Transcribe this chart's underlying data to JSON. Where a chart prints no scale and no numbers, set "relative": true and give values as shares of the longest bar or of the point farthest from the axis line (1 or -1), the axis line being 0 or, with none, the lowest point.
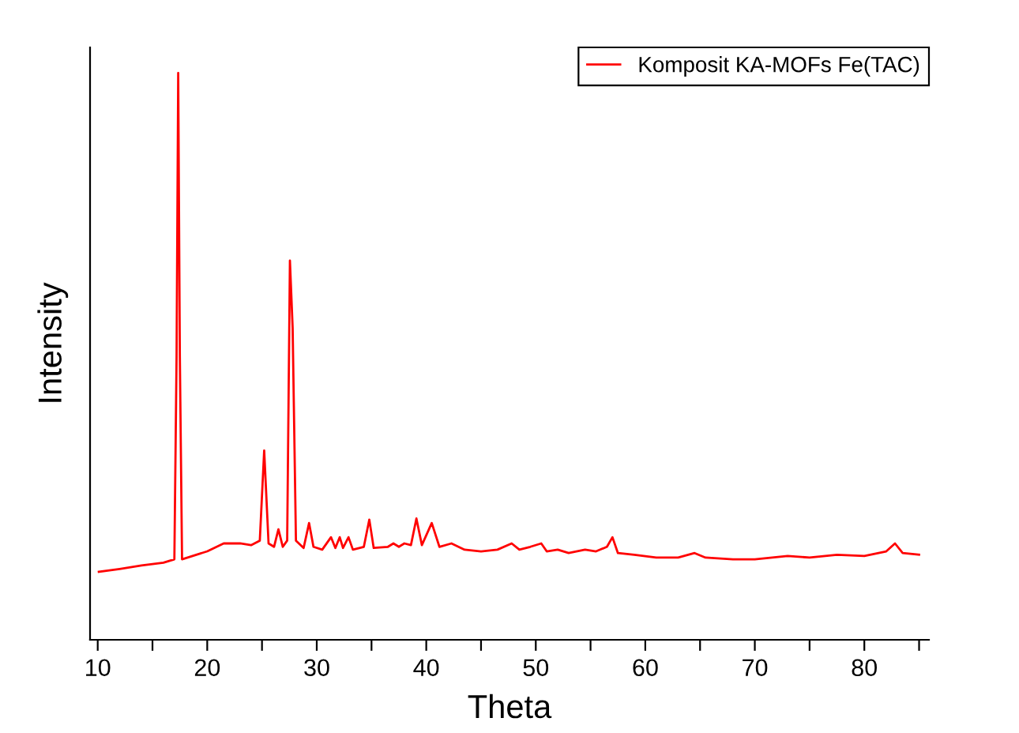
{
  "chart_data": {
    "type": "line",
    "xlabel": "Theta",
    "ylabel": "Intensity",
    "relative": true,
    "xlim": [
      9.3,
      85.9
    ],
    "xticks": [
      10,
      {
        "value": 15,
        "label": null
      },
      20,
      {
        "value": 25,
        "label": null
      },
      30,
      {
        "value": 35,
        "label": null
      },
      40,
      {
        "value": 45,
        "label": null
      },
      50,
      {
        "value": 55,
        "label": null
      },
      60,
      {
        "value": 65,
        "label": null
      },
      70,
      {
        "value": 75,
        "label": null
      },
      80,
      {
        "value": 85,
        "label": null
      }
    ],
    "legend": "top right",
    "grid": false,
    "marker": "none",
    "line_style": "solid",
    "series": [
      {
        "name": "Komposit KA-MOFs Fe(TAC)",
        "color": "#ff0000",
        "x": [
          10.1,
          12,
          14,
          16,
          17.0,
          17.2,
          17.35,
          17.5,
          17.7,
          19,
          20,
          21.5,
          23,
          24,
          24.8,
          25.2,
          25.6,
          26.1,
          26.5,
          26.9,
          27.3,
          27.55,
          27.8,
          28.1,
          28.8,
          29.3,
          29.7,
          30.5,
          31.3,
          31.7,
          32.1,
          32.4,
          32.9,
          33.3,
          34.3,
          34.8,
          35.2,
          36.5,
          37,
          37.5,
          38,
          38.6,
          39.1,
          39.6,
          40.5,
          41.2,
          42.3,
          43.5,
          45,
          46.5,
          47.8,
          48.5,
          49.5,
          50.5,
          51,
          52,
          53,
          54.5,
          55.5,
          56.5,
          57.0,
          57.5,
          59,
          61,
          63,
          64.5,
          65.5,
          68,
          70,
          73,
          75,
          77.5,
          80,
          82,
          82.8,
          83.5,
          85
        ],
        "values": [
          0.12,
          0.125,
          0.131,
          0.136,
          0.142,
          0.5,
          1.0,
          0.5,
          0.142,
          0.15,
          0.156,
          0.17,
          0.17,
          0.167,
          0.175,
          0.334,
          0.17,
          0.164,
          0.195,
          0.164,
          0.175,
          0.669,
          0.55,
          0.175,
          0.162,
          0.206,
          0.164,
          0.159,
          0.181,
          0.162,
          0.181,
          0.162,
          0.181,
          0.159,
          0.164,
          0.212,
          0.162,
          0.164,
          0.17,
          0.164,
          0.17,
          0.167,
          0.214,
          0.167,
          0.206,
          0.164,
          0.17,
          0.159,
          0.156,
          0.159,
          0.17,
          0.159,
          0.164,
          0.17,
          0.156,
          0.159,
          0.153,
          0.159,
          0.156,
          0.164,
          0.181,
          0.153,
          0.15,
          0.145,
          0.145,
          0.153,
          0.145,
          0.142,
          0.142,
          0.148,
          0.145,
          0.15,
          0.148,
          0.156,
          0.17,
          0.153,
          0.15
        ]
      }
    ]
  }
}
